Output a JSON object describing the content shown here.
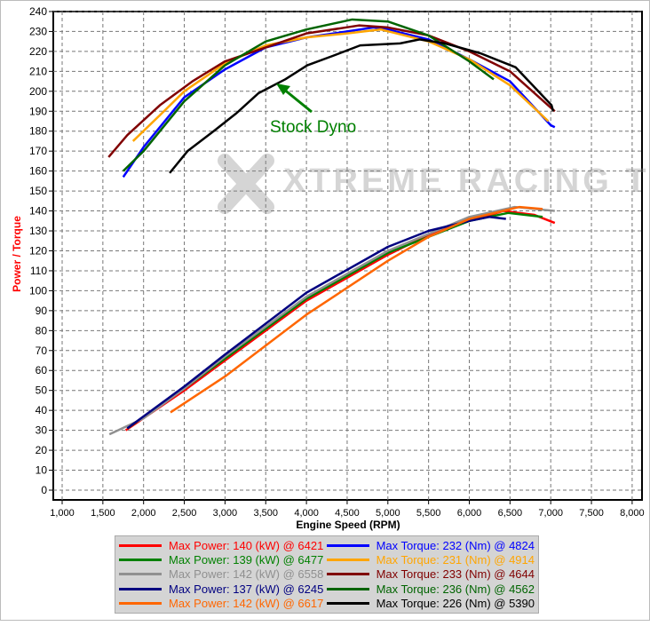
{
  "chart_data": {
    "type": "line",
    "xlabel": "Engine Speed (RPM)",
    "ylabel": "Power / Torque",
    "xlim": [
      900,
      8100
    ],
    "ylim": [
      0,
      240
    ],
    "xticks": [
      "1,000",
      "1,500",
      "2,000",
      "2,500",
      "3,000",
      "3,500",
      "4,000",
      "4,500",
      "5,000",
      "5,500",
      "6,000",
      "6,500",
      "7,000",
      "7,500",
      "8,000"
    ],
    "yticks": [
      0,
      10,
      20,
      30,
      40,
      50,
      60,
      70,
      80,
      90,
      100,
      110,
      120,
      130,
      140,
      150,
      160,
      170,
      180,
      190,
      200,
      210,
      220,
      230,
      240
    ],
    "grid": true,
    "legend_position": "bottom",
    "annotation": "Stock Dyno",
    "watermark": "XTREME RACING TUNING",
    "series": [
      {
        "name": "Max Power: 140 (kW) @ 6421",
        "color": "#ff0000",
        "points": [
          [
            1780,
            30
          ],
          [
            2500,
            50
          ],
          [
            3000,
            65
          ],
          [
            4000,
            95
          ],
          [
            5000,
            118
          ],
          [
            5500,
            128
          ],
          [
            6000,
            135
          ],
          [
            6420,
            140
          ],
          [
            6800,
            138
          ],
          [
            7050,
            134
          ]
        ]
      },
      {
        "name": "Max Power: 139 (kW) @ 6477",
        "color": "#008000",
        "points": [
          [
            1800,
            31
          ],
          [
            2500,
            51
          ],
          [
            3000,
            66
          ],
          [
            4000,
            96
          ],
          [
            5000,
            119
          ],
          [
            6000,
            135
          ],
          [
            6477,
            139
          ],
          [
            6900,
            137
          ]
        ]
      },
      {
        "name": "Max Power: 142 (kW) @ 6558",
        "color": "#909090",
        "points": [
          [
            1580,
            28
          ],
          [
            2000,
            36
          ],
          [
            2500,
            51
          ],
          [
            3000,
            67
          ],
          [
            4000,
            97
          ],
          [
            5000,
            120
          ],
          [
            6000,
            137
          ],
          [
            6558,
            142
          ],
          [
            7050,
            140
          ]
        ]
      },
      {
        "name": "Max Power: 137 (kW) @ 6245",
        "color": "#000080",
        "points": [
          [
            1800,
            31
          ],
          [
            2500,
            52
          ],
          [
            3000,
            68
          ],
          [
            4000,
            99
          ],
          [
            5000,
            122
          ],
          [
            5500,
            130
          ],
          [
            6000,
            135
          ],
          [
            6245,
            137
          ],
          [
            6450,
            136
          ]
        ]
      },
      {
        "name": "Max Power: 142 (kW) @ 6617",
        "color": "#ff6600",
        "points": [
          [
            2330,
            39
          ],
          [
            3000,
            57
          ],
          [
            4000,
            88
          ],
          [
            5000,
            115
          ],
          [
            5500,
            127
          ],
          [
            6000,
            136
          ],
          [
            6617,
            142
          ],
          [
            6900,
            141
          ]
        ]
      },
      {
        "name": "Max Torque: 232 (Nm) @ 4824",
        "color": "#0000ff",
        "points": [
          [
            1750,
            157
          ],
          [
            2000,
            172
          ],
          [
            2500,
            197
          ],
          [
            3000,
            211
          ],
          [
            3500,
            222
          ],
          [
            4000,
            227
          ],
          [
            4500,
            230
          ],
          [
            4824,
            232
          ],
          [
            5000,
            231
          ],
          [
            5500,
            226
          ],
          [
            6000,
            216
          ],
          [
            6500,
            205
          ],
          [
            7000,
            183
          ],
          [
            7050,
            182
          ]
        ]
      },
      {
        "name": "Max Torque: 231 (Nm) @ 4914",
        "color": "#ffa500",
        "points": [
          [
            1870,
            175
          ],
          [
            2200,
            188
          ],
          [
            2500,
            200
          ],
          [
            3000,
            214
          ],
          [
            3500,
            223
          ],
          [
            4000,
            227
          ],
          [
            4500,
            229
          ],
          [
            4914,
            231
          ],
          [
            5500,
            225
          ],
          [
            6000,
            216
          ],
          [
            6500,
            203
          ],
          [
            6970,
            185
          ]
        ]
      },
      {
        "name": "Max Torque: 233 (Nm) @ 4644",
        "color": "#800000",
        "points": [
          [
            1570,
            167
          ],
          [
            1800,
            178
          ],
          [
            2200,
            193
          ],
          [
            2600,
            205
          ],
          [
            3000,
            215
          ],
          [
            3500,
            222
          ],
          [
            4000,
            229
          ],
          [
            4644,
            233
          ],
          [
            5000,
            232
          ],
          [
            5500,
            228
          ],
          [
            6000,
            220
          ],
          [
            6500,
            210
          ],
          [
            7050,
            190
          ]
        ]
      },
      {
        "name": "Max Torque: 236 (Nm) @ 4562",
        "color": "#006400",
        "points": [
          [
            1750,
            160
          ],
          [
            2000,
            170
          ],
          [
            2500,
            195
          ],
          [
            3000,
            213
          ],
          [
            3500,
            225
          ],
          [
            4000,
            231
          ],
          [
            4562,
            236
          ],
          [
            5000,
            235
          ],
          [
            5500,
            228
          ],
          [
            6000,
            215
          ],
          [
            6300,
            206
          ]
        ]
      },
      {
        "name": "Max Torque: 226 (Nm) @ 5390",
        "color": "#000000",
        "points": [
          [
            2320,
            159
          ],
          [
            2540,
            170
          ],
          [
            2860,
            180
          ],
          [
            3140,
            189
          ],
          [
            3410,
            199
          ],
          [
            3740,
            206
          ],
          [
            4010,
            213
          ],
          [
            4340,
            218
          ],
          [
            4660,
            223
          ],
          [
            5150,
            224
          ],
          [
            5390,
            226
          ],
          [
            5700,
            224
          ],
          [
            6140,
            219
          ],
          [
            6570,
            212
          ],
          [
            7010,
            193
          ],
          [
            7030,
            190
          ]
        ]
      }
    ]
  }
}
